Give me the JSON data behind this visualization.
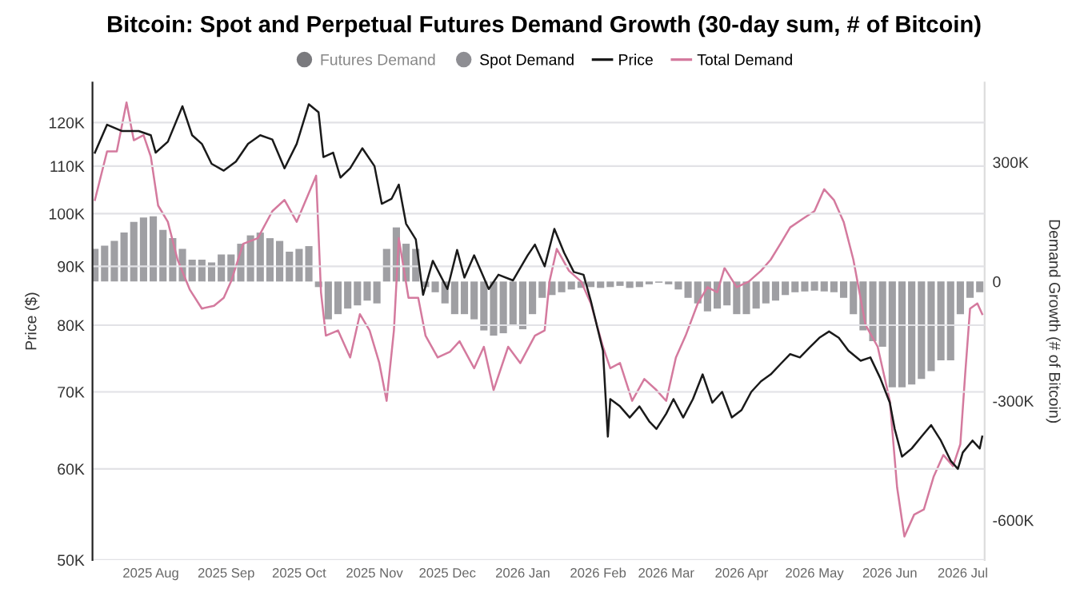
{
  "chart_data": {
    "type": "line",
    "title": "Bitcoin: Spot and Perpetual Futures Demand Growth (30-day sum, # of Bitcoin)",
    "ylabel": "Price ($)",
    "y2label": "Demand Growth (# of Bitcoin)",
    "legend": "top",
    "grid": "y",
    "xlim": [
      "2025-07-08",
      "2026-07-10"
    ],
    "xticks": [
      {
        "value": "2025-08-01",
        "label": "2025 Aug"
      },
      {
        "value": "2025-09-01",
        "label": "2025 Sep"
      },
      {
        "value": "2025-10-01",
        "label": "2025 Oct"
      },
      {
        "value": "2025-11-01",
        "label": "2025 Nov"
      },
      {
        "value": "2025-12-01",
        "label": "2025 Dec"
      },
      {
        "value": "2026-01-01",
        "label": "2026 Jan"
      },
      {
        "value": "2026-02-01",
        "label": "2026 Feb"
      },
      {
        "value": "2026-03-01",
        "label": "2026 Mar"
      },
      {
        "value": "2026-04-01",
        "label": "2026 Apr"
      },
      {
        "value": "2026-05-01",
        "label": "2026 May"
      },
      {
        "value": "2026-06-01",
        "label": "2026 Jun"
      },
      {
        "value": "2026-07-01",
        "label": "2026 Jul"
      }
    ],
    "log": "y",
    "ylim": [
      50000,
      130000
    ],
    "yticks": [
      {
        "value": 50000,
        "label": "50K"
      },
      {
        "value": 60000,
        "label": "60K"
      },
      {
        "value": 70000,
        "label": "70K"
      },
      {
        "value": 80000,
        "label": "80K"
      },
      {
        "value": 90000,
        "label": "90K"
      },
      {
        "value": 100000,
        "label": "100K"
      },
      {
        "value": 110000,
        "label": "110K"
      },
      {
        "value": 120000,
        "label": "120K"
      }
    ],
    "y2lim": [
      -700000,
      500000
    ],
    "y2ticks": [
      {
        "value": -600000,
        "label": "-600K"
      },
      {
        "value": -300000,
        "label": "-300K"
      },
      0,
      {
        "value": 300000,
        "label": "300K"
      }
    ],
    "series": [
      {
        "name": "Futures Demand",
        "type": "bar",
        "axis": "y2",
        "color": "#7a7a7e"
      },
      {
        "name": "Spot Demand",
        "type": "bar",
        "axis": "y2",
        "color": "#8e8e93",
        "x": [
          "2025-07-09",
          "2025-07-13",
          "2025-07-17",
          "2025-07-21",
          "2025-07-25",
          "2025-07-29",
          "2025-08-02",
          "2025-08-06",
          "2025-08-10",
          "2025-08-14",
          "2025-08-18",
          "2025-08-22",
          "2025-08-26",
          "2025-08-30",
          "2025-09-03",
          "2025-09-07",
          "2025-09-11",
          "2025-09-15",
          "2025-09-19",
          "2025-09-23",
          "2025-09-27",
          "2025-10-01",
          "2025-10-05",
          "2025-10-09",
          "2025-10-13",
          "2025-10-17",
          "2025-10-21",
          "2025-10-25",
          "2025-10-29",
          "2025-11-02",
          "2025-11-06",
          "2025-11-10",
          "2025-11-14",
          "2025-11-18",
          "2025-11-22",
          "2025-11-26",
          "2025-11-30",
          "2025-12-04",
          "2025-12-08",
          "2025-12-12",
          "2025-12-16",
          "2025-12-20",
          "2025-12-24",
          "2025-12-28",
          "2026-01-01",
          "2026-01-05",
          "2026-01-09",
          "2026-01-13",
          "2026-01-17",
          "2026-01-21",
          "2026-01-25",
          "2026-01-29",
          "2026-02-02",
          "2026-02-06",
          "2026-02-10",
          "2026-02-14",
          "2026-02-18",
          "2026-02-22",
          "2026-02-26",
          "2026-03-02",
          "2026-03-06",
          "2026-03-10",
          "2026-03-14",
          "2026-03-18",
          "2026-03-22",
          "2026-03-26",
          "2026-03-30",
          "2026-04-03",
          "2026-04-07",
          "2026-04-11",
          "2026-04-15",
          "2026-04-19",
          "2026-04-23",
          "2026-04-27",
          "2026-05-01",
          "2026-05-05",
          "2026-05-09",
          "2026-05-13",
          "2026-05-17",
          "2026-05-21",
          "2026-05-25",
          "2026-05-29",
          "2026-06-02",
          "2026-06-06",
          "2026-06-10",
          "2026-06-14",
          "2026-06-18",
          "2026-06-22",
          "2026-06-26",
          "2026-06-30",
          "2026-07-04",
          "2026-07-08"
        ],
        "values": [
          82000,
          90000,
          102000,
          123000,
          150000,
          161000,
          164000,
          130000,
          109000,
          82000,
          55000,
          55000,
          48000,
          68000,
          68000,
          95000,
          116000,
          123000,
          109000,
          102000,
          75000,
          82000,
          89000,
          -14000,
          -95000,
          -82000,
          -68000,
          -60000,
          -48000,
          -55000,
          82000,
          136000,
          95000,
          82000,
          -14000,
          -27000,
          -55000,
          -82000,
          -82000,
          -95000,
          -123000,
          -136000,
          -130000,
          -109000,
          -120000,
          -82000,
          -41000,
          -34000,
          -27000,
          -20000,
          -16000,
          -14000,
          -16000,
          -14000,
          -11000,
          -16000,
          -14000,
          -7000,
          -3000,
          -7000,
          -20000,
          -41000,
          -55000,
          -75000,
          -68000,
          -60000,
          -82000,
          -82000,
          -68000,
          -55000,
          -48000,
          -34000,
          -27000,
          -25000,
          -23000,
          -25000,
          -27000,
          -41000,
          -82000,
          -123000,
          -150000,
          -164000,
          -266000,
          -266000,
          -259000,
          -245000,
          -225000,
          -198000,
          -198000,
          -82000,
          -41000,
          -27000
        ]
      },
      {
        "name": "Price",
        "axis": "y",
        "color": "#1a1a1a",
        "x": [
          "2025-07-09",
          "2025-07-14",
          "2025-07-20",
          "2025-07-27",
          "2025-08-01",
          "2025-08-03",
          "2025-08-08",
          "2025-08-14",
          "2025-08-18",
          "2025-08-22",
          "2025-08-26",
          "2025-08-31",
          "2025-09-05",
          "2025-09-10",
          "2025-09-15",
          "2025-09-20",
          "2025-09-25",
          "2025-09-30",
          "2025-10-05",
          "2025-10-09",
          "2025-10-11",
          "2025-10-15",
          "2025-10-18",
          "2025-10-22",
          "2025-10-27",
          "2025-11-01",
          "2025-11-04",
          "2025-11-08",
          "2025-11-11",
          "2025-11-14",
          "2025-11-18",
          "2025-11-21",
          "2025-11-25",
          "2025-12-01",
          "2025-12-05",
          "2025-12-08",
          "2025-12-12",
          "2025-12-18",
          "2025-12-22",
          "2025-12-28",
          "2026-01-03",
          "2026-01-06",
          "2026-01-10",
          "2026-01-14",
          "2026-01-18",
          "2026-01-22",
          "2026-01-26",
          "2026-01-29",
          "2026-02-03",
          "2026-02-05",
          "2026-02-06",
          "2026-02-10",
          "2026-02-14",
          "2026-02-18",
          "2026-02-22",
          "2026-02-25",
          "2026-03-01",
          "2026-03-04",
          "2026-03-08",
          "2026-03-12",
          "2026-03-16",
          "2026-03-20",
          "2026-03-24",
          "2026-03-28",
          "2026-04-01",
          "2026-04-05",
          "2026-04-09",
          "2026-04-13",
          "2026-04-17",
          "2026-04-21",
          "2026-04-25",
          "2026-04-29",
          "2026-05-03",
          "2026-05-07",
          "2026-05-11",
          "2026-05-15",
          "2026-05-20",
          "2026-05-24",
          "2026-05-28",
          "2026-06-01",
          "2026-06-03",
          "2026-06-06",
          "2026-06-10",
          "2026-06-14",
          "2026-06-18",
          "2026-06-22",
          "2026-06-26",
          "2026-06-29",
          "2026-07-01",
          "2026-07-05",
          "2026-07-08",
          "2026-07-09"
        ],
        "values": [
          113000,
          119500,
          118000,
          118000,
          117000,
          113000,
          115500,
          124000,
          117000,
          115000,
          110500,
          109000,
          111000,
          115000,
          117000,
          116000,
          109500,
          115000,
          124500,
          122500,
          112000,
          113000,
          107500,
          109500,
          114000,
          110000,
          102000,
          103000,
          106000,
          98000,
          95000,
          85000,
          91000,
          86000,
          93000,
          88000,
          92000,
          86000,
          88500,
          87500,
          92000,
          94000,
          90000,
          97000,
          92500,
          89000,
          88500,
          84000,
          76000,
          64000,
          69000,
          68000,
          66500,
          68000,
          66000,
          65000,
          67000,
          69000,
          66500,
          69000,
          72500,
          68500,
          70000,
          66500,
          67500,
          70000,
          71500,
          72500,
          74000,
          75500,
          75000,
          76500,
          78000,
          79000,
          78000,
          76000,
          74500,
          75000,
          72000,
          68500,
          65000,
          61500,
          62500,
          64000,
          65500,
          63500,
          61000,
          60000,
          62000,
          63500,
          62500,
          64000
        ]
      },
      {
        "name": "Total Demand",
        "axis": "y2",
        "color": "#d47a9e",
        "x": [
          "2025-07-09",
          "2025-07-14",
          "2025-07-18",
          "2025-07-22",
          "2025-07-25",
          "2025-07-29",
          "2025-08-01",
          "2025-08-04",
          "2025-08-08",
          "2025-08-12",
          "2025-08-17",
          "2025-08-22",
          "2025-08-27",
          "2025-08-31",
          "2025-09-03",
          "2025-09-08",
          "2025-09-14",
          "2025-09-20",
          "2025-09-25",
          "2025-09-30",
          "2025-10-08",
          "2025-10-10",
          "2025-10-12",
          "2025-10-17",
          "2025-10-22",
          "2025-10-26",
          "2025-10-30",
          "2025-11-03",
          "2025-11-06",
          "2025-11-09",
          "2025-11-11",
          "2025-11-15",
          "2025-11-19",
          "2025-11-22",
          "2025-11-27",
          "2025-12-02",
          "2025-12-06",
          "2025-12-12",
          "2025-12-16",
          "2025-12-20",
          "2025-12-26",
          "2025-12-31",
          "2026-01-06",
          "2026-01-10",
          "2026-01-12",
          "2026-01-15",
          "2026-01-20",
          "2026-01-25",
          "2026-01-29",
          "2026-02-03",
          "2026-02-06",
          "2026-02-10",
          "2026-02-15",
          "2026-02-20",
          "2026-02-25",
          "2026-03-01",
          "2026-03-05",
          "2026-03-09",
          "2026-03-14",
          "2026-03-18",
          "2026-03-22",
          "2026-03-25",
          "2026-03-30",
          "2026-04-04",
          "2026-04-09",
          "2026-04-13",
          "2026-04-17",
          "2026-04-21",
          "2026-04-26",
          "2026-05-01",
          "2026-05-05",
          "2026-05-09",
          "2026-05-13",
          "2026-05-17",
          "2026-05-22",
          "2026-05-27",
          "2026-06-01",
          "2026-06-04",
          "2026-06-07",
          "2026-06-11",
          "2026-06-15",
          "2026-06-19",
          "2026-06-23",
          "2026-06-27",
          "2026-06-30",
          "2026-07-02",
          "2026-07-04",
          "2026-07-07",
          "2026-07-09"
        ],
        "values": [
          205000,
          327000,
          327000,
          450000,
          355000,
          368000,
          314000,
          191000,
          150000,
          55000,
          -20000,
          -68000,
          -61000,
          -41000,
          0,
          95000,
          109000,
          177000,
          205000,
          150000,
          266000,
          -27000,
          -136000,
          -123000,
          -191000,
          -82000,
          -123000,
          -205000,
          -300000,
          -123000,
          109000,
          -41000,
          -41000,
          -136000,
          -191000,
          -177000,
          -150000,
          -218000,
          -164000,
          -273000,
          -164000,
          -205000,
          -136000,
          -123000,
          0,
          82000,
          27000,
          0,
          -55000,
          -164000,
          -218000,
          -205000,
          -300000,
          -245000,
          -273000,
          -300000,
          -191000,
          -136000,
          -55000,
          -14000,
          -27000,
          34000,
          -14000,
          0,
          27000,
          55000,
          95000,
          136000,
          157000,
          177000,
          232000,
          205000,
          150000,
          55000,
          -109000,
          -164000,
          -300000,
          -518000,
          -641000,
          -586000,
          -573000,
          -491000,
          -436000,
          -464000,
          -409000,
          -232000,
          -68000,
          -55000,
          -82000
        ]
      }
    ]
  }
}
